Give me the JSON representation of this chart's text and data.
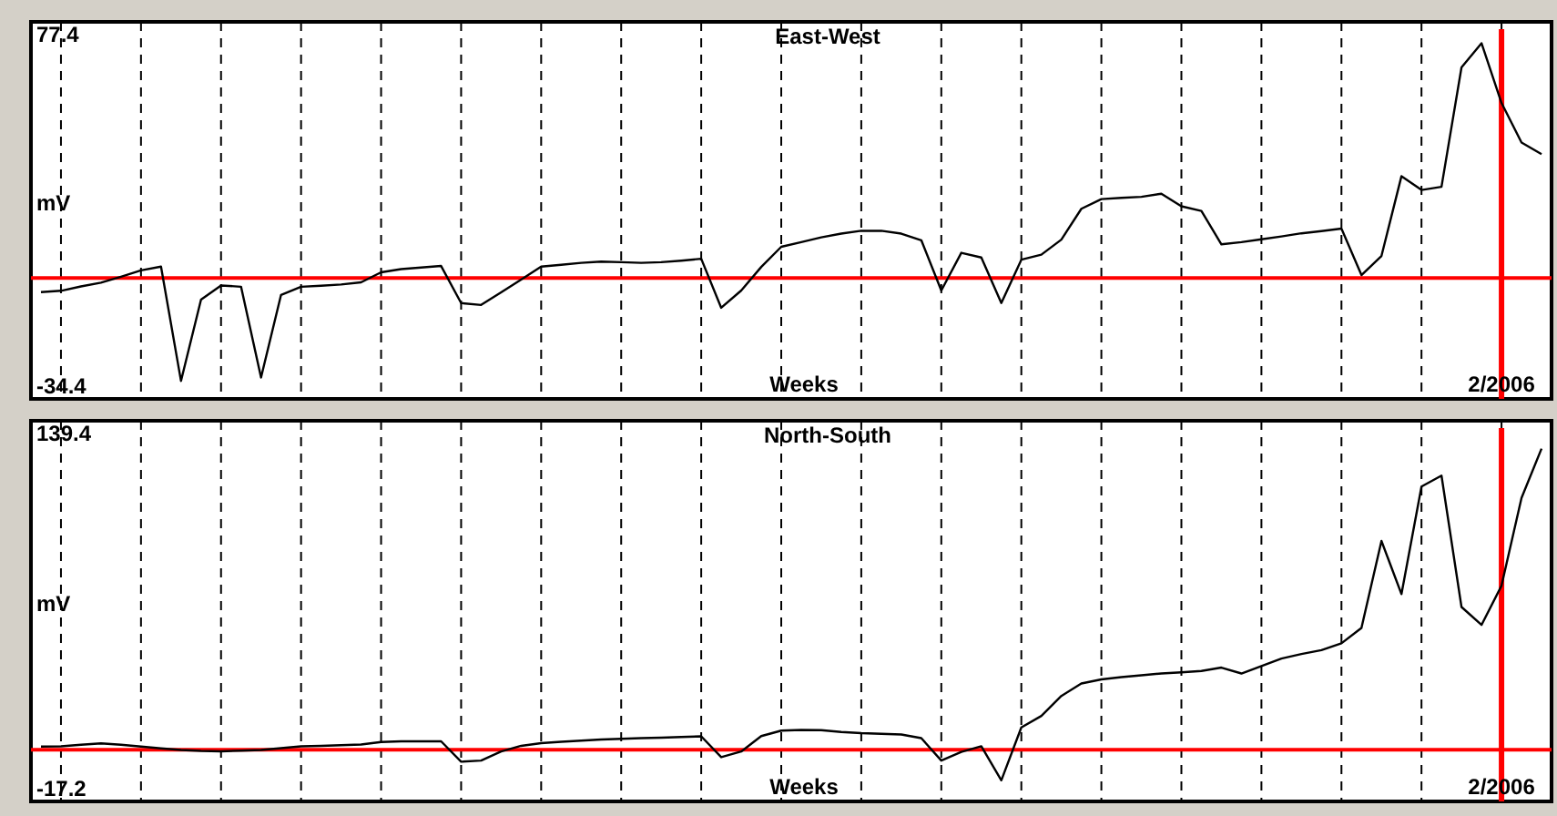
{
  "chart_data": [
    {
      "type": "line",
      "title": "East-West",
      "xlabel": "Weeks",
      "ylabel": "mV",
      "ylim": [
        -38.5,
        81.5
      ],
      "yticks": [
        -34.4,
        77.4
      ],
      "categories": [
        null,
        null,
        null,
        null,
        null,
        null,
        null,
        null,
        null,
        null,
        null,
        null,
        null,
        null,
        null,
        null,
        null,
        null,
        null,
        null,
        null,
        null,
        null,
        null,
        null,
        null,
        null,
        null,
        null,
        null,
        null,
        null,
        null,
        null,
        null,
        null,
        null,
        null,
        null,
        null,
        null,
        null,
        null,
        null,
        null,
        null,
        null,
        null,
        null,
        null,
        null,
        null,
        null,
        null,
        null,
        null,
        null,
        null,
        null,
        null,
        null,
        null,
        null,
        null,
        null,
        null,
        null,
        null,
        null,
        null,
        null,
        null,
        null,
        "2/2006",
        null,
        null
      ],
      "grid": "x",
      "line_style": "solid",
      "marker": "none",
      "ref_lines": [
        {
          "axis": "y",
          "value": 0,
          "color": "#ff0000"
        },
        {
          "axis": "x",
          "value": "2/2006",
          "color": "#ff0000"
        }
      ],
      "series": [
        {
          "color": "#000000",
          "values": [
            -4.5,
            -4.1,
            -2.7,
            -1.5,
            0.4,
            2.4,
            3.6,
            -32.8,
            -6.9,
            -2.4,
            -2.8,
            -31.7,
            -5.4,
            -2.8,
            -2.5,
            -2.1,
            -1.4,
            1.8,
            2.8,
            3.3,
            3.8,
            -8.0,
            -8.6,
            -4.6,
            -0.5,
            3.6,
            4.2,
            4.8,
            5.2,
            5.0,
            4.8,
            5.0,
            5.5,
            6.1,
            -9.5,
            -4.0,
            3.5,
            9.9,
            11.4,
            12.9,
            14.1,
            15.0,
            15.0,
            14.1,
            12.0,
            -4.0,
            8.0,
            6.5,
            -8.0,
            5.8,
            7.4,
            12.2,
            22.0,
            25.1,
            25.5,
            25.8,
            26.8,
            22.8,
            21.3,
            10.7,
            11.4,
            12.3,
            13.2,
            14.2,
            14.9,
            15.7,
            0.9,
            7.0,
            32.4,
            28.0,
            29.0,
            67.0,
            74.7,
            55.7,
            43.1,
            39.4
          ]
        }
      ]
    },
    {
      "type": "line",
      "title": "North-South",
      "xlabel": "Weeks",
      "ylabel": "mV",
      "ylim": [
        -22.8,
        145.0
      ],
      "yticks": [
        -17.2,
        139.4
      ],
      "categories": [
        null,
        null,
        null,
        null,
        null,
        null,
        null,
        null,
        null,
        null,
        null,
        null,
        null,
        null,
        null,
        null,
        null,
        null,
        null,
        null,
        null,
        null,
        null,
        null,
        null,
        null,
        null,
        null,
        null,
        null,
        null,
        null,
        null,
        null,
        null,
        null,
        null,
        null,
        null,
        null,
        null,
        null,
        null,
        null,
        null,
        null,
        null,
        null,
        null,
        null,
        null,
        null,
        null,
        null,
        null,
        null,
        null,
        null,
        null,
        null,
        null,
        null,
        null,
        null,
        null,
        null,
        null,
        null,
        null,
        null,
        null,
        null,
        null,
        "2/2006",
        null,
        null
      ],
      "grid": "x",
      "line_style": "solid",
      "marker": "none",
      "ref_lines": [
        {
          "axis": "y",
          "value": 0,
          "color": "#ff0000"
        },
        {
          "axis": "x",
          "value": "2/2006",
          "color": "#ff0000"
        }
      ],
      "series": [
        {
          "color": "#000000",
          "values": [
            1.4,
            1.5,
            2.2,
            2.8,
            2.2,
            1.4,
            0.6,
            -0.1,
            -0.5,
            -0.7,
            -0.4,
            -0.1,
            0.7,
            1.5,
            1.7,
            2.0,
            2.3,
            3.4,
            3.7,
            3.7,
            3.7,
            -5.3,
            -4.8,
            -0.8,
            1.7,
            2.9,
            3.5,
            4.0,
            4.5,
            4.8,
            5.1,
            5.3,
            5.6,
            5.9,
            -3.3,
            -0.8,
            6.0,
            8.4,
            8.7,
            8.6,
            7.8,
            7.3,
            7.0,
            6.7,
            5.1,
            -4.8,
            -1.0,
            1.5,
            -13.5,
            9.8,
            14.9,
            23.7,
            29.2,
            31.0,
            32.0,
            32.8,
            33.6,
            34.1,
            34.7,
            36.2,
            33.6,
            36.9,
            40.2,
            42.2,
            43.9,
            46.9,
            53.7,
            92.0,
            68.6,
            116.0,
            120.8,
            62.9,
            55.0,
            72.3,
            111.0,
            132.7
          ]
        }
      ]
    }
  ]
}
